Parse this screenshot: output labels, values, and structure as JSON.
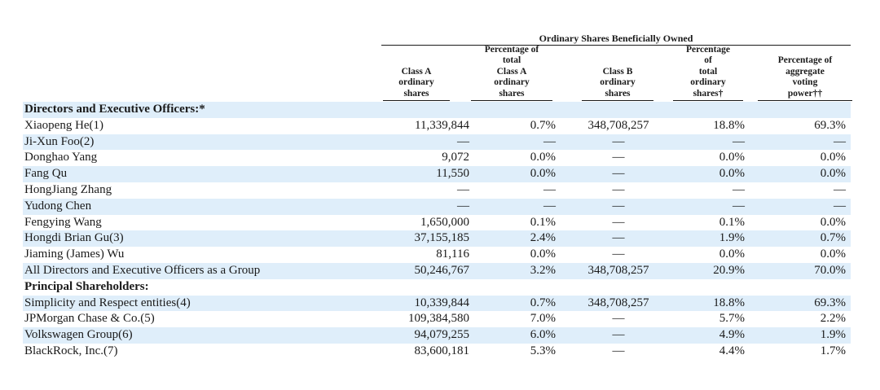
{
  "table": {
    "group_header": "Ordinary Shares Beneficially Owned",
    "columns": [
      [
        "Class A",
        "ordinary",
        "shares"
      ],
      [
        "Percentage of",
        "total",
        "Class A",
        "ordinary",
        "shares"
      ],
      [
        "Class B",
        "ordinary",
        "shares"
      ],
      [
        "Percentage",
        "of",
        "total",
        "ordinary",
        "shares†"
      ],
      [
        "Percentage of",
        "aggregate",
        "voting",
        "power††"
      ]
    ],
    "rows": [
      {
        "label": "Directors and Executive Officers:*",
        "section": true,
        "values": [
          "",
          "",
          "",
          "",
          ""
        ]
      },
      {
        "label": "Xiaopeng He(1)",
        "values": [
          "11,339,844",
          "0.7%",
          "348,708,257",
          "18.8%",
          "69.3%"
        ]
      },
      {
        "label": "Ji-Xun Foo(2)",
        "values": [
          "—",
          "—",
          "—",
          "—",
          "—"
        ]
      },
      {
        "label": "Donghao Yang",
        "values": [
          "9,072",
          "0.0%",
          "—",
          "0.0%",
          "0.0%"
        ]
      },
      {
        "label": "Fang Qu",
        "values": [
          "11,550",
          "0.0%",
          "—",
          "0.0%",
          "0.0%"
        ]
      },
      {
        "label": "HongJiang Zhang",
        "values": [
          "—",
          "—",
          "—",
          "—",
          "—"
        ]
      },
      {
        "label": "Yudong Chen",
        "values": [
          "—",
          "—",
          "—",
          "—",
          "—"
        ]
      },
      {
        "label": "Fengying Wang",
        "values": [
          "1,650,000",
          "0.1%",
          "—",
          "0.1%",
          "0.0%"
        ]
      },
      {
        "label": "Hongdi Brian Gu(3)",
        "values": [
          "37,155,185",
          "2.4%",
          "—",
          "1.9%",
          "0.7%"
        ]
      },
      {
        "label": "Jiaming (James) Wu",
        "values": [
          "81,116",
          "0.0%",
          "—",
          "0.0%",
          "0.0%"
        ]
      },
      {
        "label": "All Directors and Executive Officers as a Group",
        "values": [
          "50,246,767",
          "3.2%",
          "348,708,257",
          "20.9%",
          "70.0%"
        ]
      },
      {
        "label": "Principal Shareholders:",
        "section": true,
        "values": [
          "",
          "",
          "",
          "",
          ""
        ]
      },
      {
        "label": "Simplicity and Respect entities(4)",
        "values": [
          "10,339,844",
          "0.7%",
          "348,708,257",
          "18.8%",
          "69.3%"
        ]
      },
      {
        "label": "JPMorgan Chase & Co.(5)",
        "values": [
          "109,384,580",
          "7.0%",
          "—",
          "5.7%",
          "2.2%"
        ]
      },
      {
        "label": "Volkswagen Group(6)",
        "values": [
          "94,079,255",
          "6.0%",
          "—",
          "4.9%",
          "1.9%"
        ]
      },
      {
        "label": "BlackRock, Inc.(7)",
        "values": [
          "83,600,181",
          "5.3%",
          "—",
          "4.4%",
          "1.7%"
        ]
      }
    ]
  }
}
